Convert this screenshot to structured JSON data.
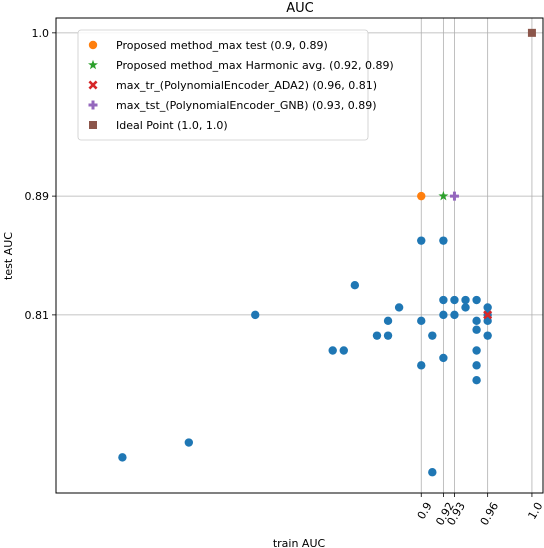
{
  "chart_data": {
    "type": "scatter",
    "title": "AUC",
    "xlabel": "train AUC",
    "ylabel": "test AUC",
    "xlim": [
      0.57,
      1.01
    ],
    "ylim": [
      0.69,
      1.01
    ],
    "xticks": [
      0.9,
      0.92,
      0.93,
      0.96,
      1.0
    ],
    "xtick_labels": [
      "0.9",
      "0.92",
      "0.93",
      "0.96",
      "1.0"
    ],
    "yticks": [
      0.81,
      0.89,
      1.0
    ],
    "ytick_labels": [
      "0.81",
      "0.89",
      "1.0"
    ],
    "grid": "at tick positions",
    "legend_position": "upper-left",
    "colors": {
      "points": "#1f77b4",
      "proposed_max_test": "#ff7f0e",
      "harmonic": "#2ca02c",
      "max_tr": "#d62728",
      "max_tst": "#9467bd",
      "ideal": "#8c564b",
      "grid": "#b0b0b0"
    },
    "series": [
      {
        "name": "",
        "marker": "circle",
        "color": "#1f77b4",
        "points": [
          [
            0.63,
            0.714
          ],
          [
            0.69,
            0.724
          ],
          [
            0.75,
            0.81
          ],
          [
            0.84,
            0.83
          ],
          [
            0.83,
            0.786
          ],
          [
            0.82,
            0.786
          ],
          [
            0.86,
            0.796
          ],
          [
            0.87,
            0.796
          ],
          [
            0.87,
            0.806
          ],
          [
            0.88,
            0.815
          ],
          [
            0.9,
            0.86
          ],
          [
            0.9,
            0.806
          ],
          [
            0.9,
            0.776
          ],
          [
            0.91,
            0.796
          ],
          [
            0.91,
            0.704
          ],
          [
            0.92,
            0.86
          ],
          [
            0.92,
            0.82
          ],
          [
            0.92,
            0.81
          ],
          [
            0.92,
            0.781
          ],
          [
            0.93,
            0.82
          ],
          [
            0.93,
            0.81
          ],
          [
            0.94,
            0.82
          ],
          [
            0.94,
            0.815
          ],
          [
            0.95,
            0.82
          ],
          [
            0.95,
            0.806
          ],
          [
            0.95,
            0.8
          ],
          [
            0.95,
            0.786
          ],
          [
            0.95,
            0.776
          ],
          [
            0.95,
            0.766
          ],
          [
            0.96,
            0.81
          ],
          [
            0.96,
            0.815
          ],
          [
            0.96,
            0.806
          ],
          [
            0.96,
            0.796
          ]
        ]
      },
      {
        "name": "Proposed method_max test  (0.9, 0.89)",
        "marker": "circle",
        "color": "#ff7f0e",
        "points": [
          [
            0.9,
            0.89
          ]
        ]
      },
      {
        "name": "Proposed method_max Harmonic avg.  (0.92, 0.89)",
        "marker": "star",
        "color": "#2ca02c",
        "points": [
          [
            0.92,
            0.89
          ]
        ]
      },
      {
        "name": "max_tr_(PolynomialEncoder_ADA2)  (0.96, 0.81)",
        "marker": "x",
        "color": "#d62728",
        "points": [
          [
            0.96,
            0.81
          ]
        ]
      },
      {
        "name": "max_tst_(PolynomialEncoder_GNB)  (0.93, 0.89)",
        "marker": "plus",
        "color": "#9467bd",
        "points": [
          [
            0.93,
            0.89
          ]
        ]
      },
      {
        "name": "Ideal Point  (1.0, 1.0)",
        "marker": "square",
        "color": "#8c564b",
        "points": [
          [
            1.0,
            1.0
          ]
        ]
      }
    ]
  }
}
